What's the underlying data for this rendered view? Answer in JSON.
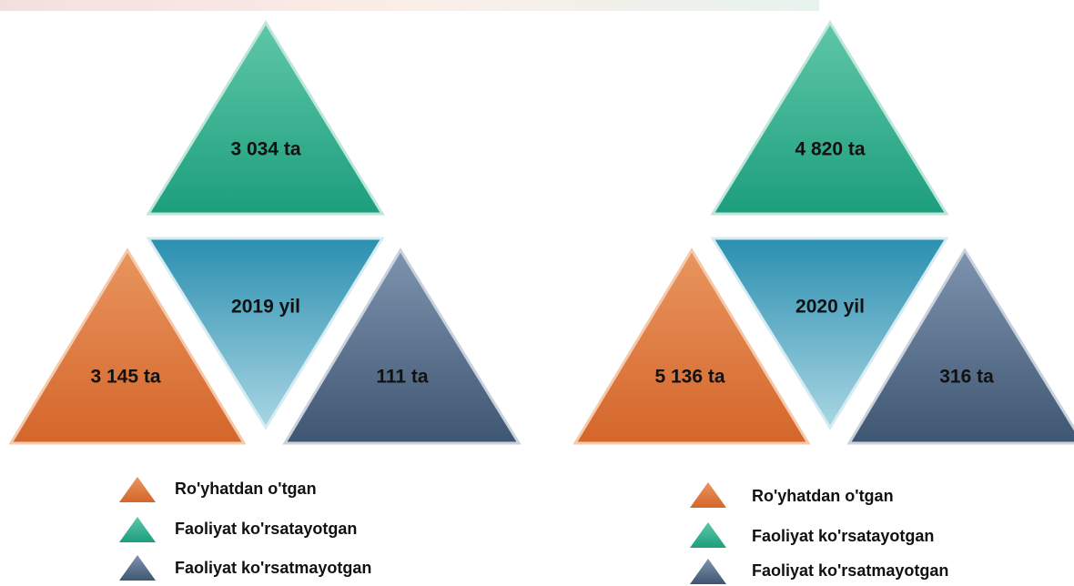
{
  "panels": [
    {
      "year": "2019 yil",
      "active": "3 034 ta",
      "registered": "3 145 ta",
      "inactive": "111 ta"
    },
    {
      "year": "2020 yil",
      "active": "4 820 ta",
      "registered": "5 136 ta",
      "inactive": "316 ta"
    }
  ],
  "legend": [
    "Ro'yhatdan o'tgan",
    "Faoliyat ko'rsatayotgan",
    "Faoliyat ko'rsatmayotgan"
  ]
}
